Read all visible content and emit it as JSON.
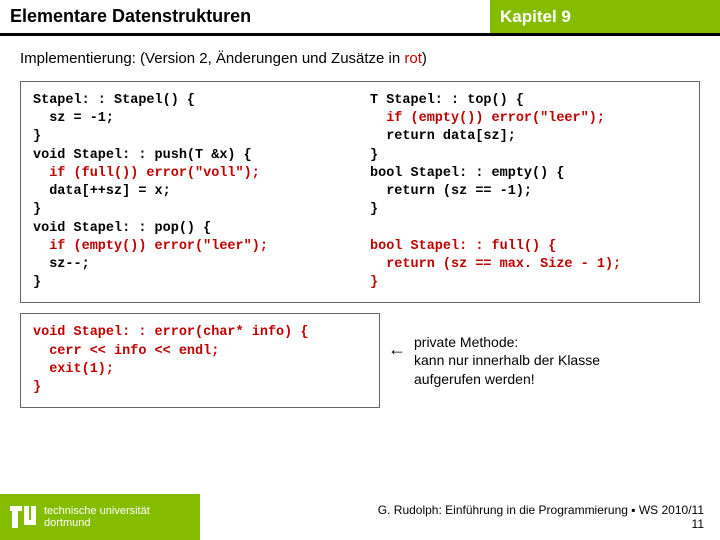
{
  "colors": {
    "accent_green": "#84bd00",
    "text_black": "#000000",
    "text_red": "#c00000",
    "box_border": "#666666",
    "white": "#ffffff"
  },
  "header": {
    "title_left": "Elementare Datenstrukturen",
    "title_right": "Kapitel 9"
  },
  "subtitle": {
    "prefix": "Implementierung: (Version 2, Änderungen und Zusätze in ",
    "rot_word": "rot",
    "suffix": ")"
  },
  "code_top_left": "Stapel: : Stapel() {\n  sz = -1;\n}\nvoid Stapel: : push(T &x) {\n  if (full()) error(\"voll\");\n  data[++sz] = x;\n}\nvoid Stapel: : pop() {\n  if (empty()) error(\"leer\");\n  sz--;\n}",
  "code_top_right": "T Stapel: : top() {\n  if (empty()) error(\"leer\");\n  return data[sz];\n}\nbool Stapel: : empty() {\n  return (sz == -1);\n}\n\nbool Stapel: : full() {\n  return (sz == max. Size - 1);\n}",
  "code_bottom": "void Stapel: : error(char* info) {\n  cerr << info << endl;\n  exit(1);\n}",
  "annotation": {
    "line1": "private Methode:",
    "line2": "kann nur innerhalb der Klasse",
    "line3": "aufgerufen werden!"
  },
  "footer": {
    "uni_line1": "technische universität",
    "uni_line2": "dortmund",
    "credit": "G. Rudolph: Einführung in die Programmierung ▪ WS 2010/11",
    "page": "11"
  }
}
